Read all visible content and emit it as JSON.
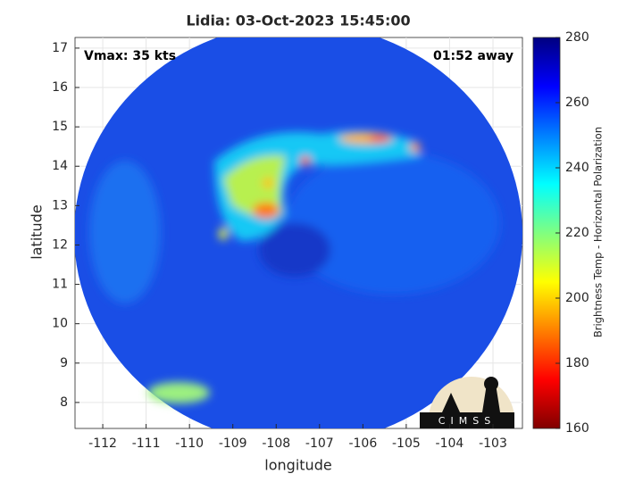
{
  "chart_data": {
    "type": "image",
    "title": "Lidia: 03-Oct-2023 15:45:00",
    "xlabel": "longitude",
    "ylabel": "latitude",
    "xlim": [
      -112.64,
      -102.32
    ],
    "ylim": [
      7.34,
      17.27
    ],
    "xticks": [
      -112,
      -111,
      -110,
      -109,
      -108,
      -107,
      -106,
      -105,
      -104,
      -103
    ],
    "yticks": [
      8,
      9,
      10,
      11,
      12,
      13,
      14,
      15,
      16,
      17
    ],
    "grid": true,
    "annotations": [
      "Vmax: 35 kts",
      "01:52 away"
    ],
    "colorbar": {
      "label": "Brightness Temp - Horizontal Polarization",
      "lim": [
        160,
        280
      ],
      "ticks": [
        160,
        180,
        200,
        220,
        240,
        260,
        280
      ],
      "colormap": "jet"
    },
    "logo": "CIMSS"
  }
}
